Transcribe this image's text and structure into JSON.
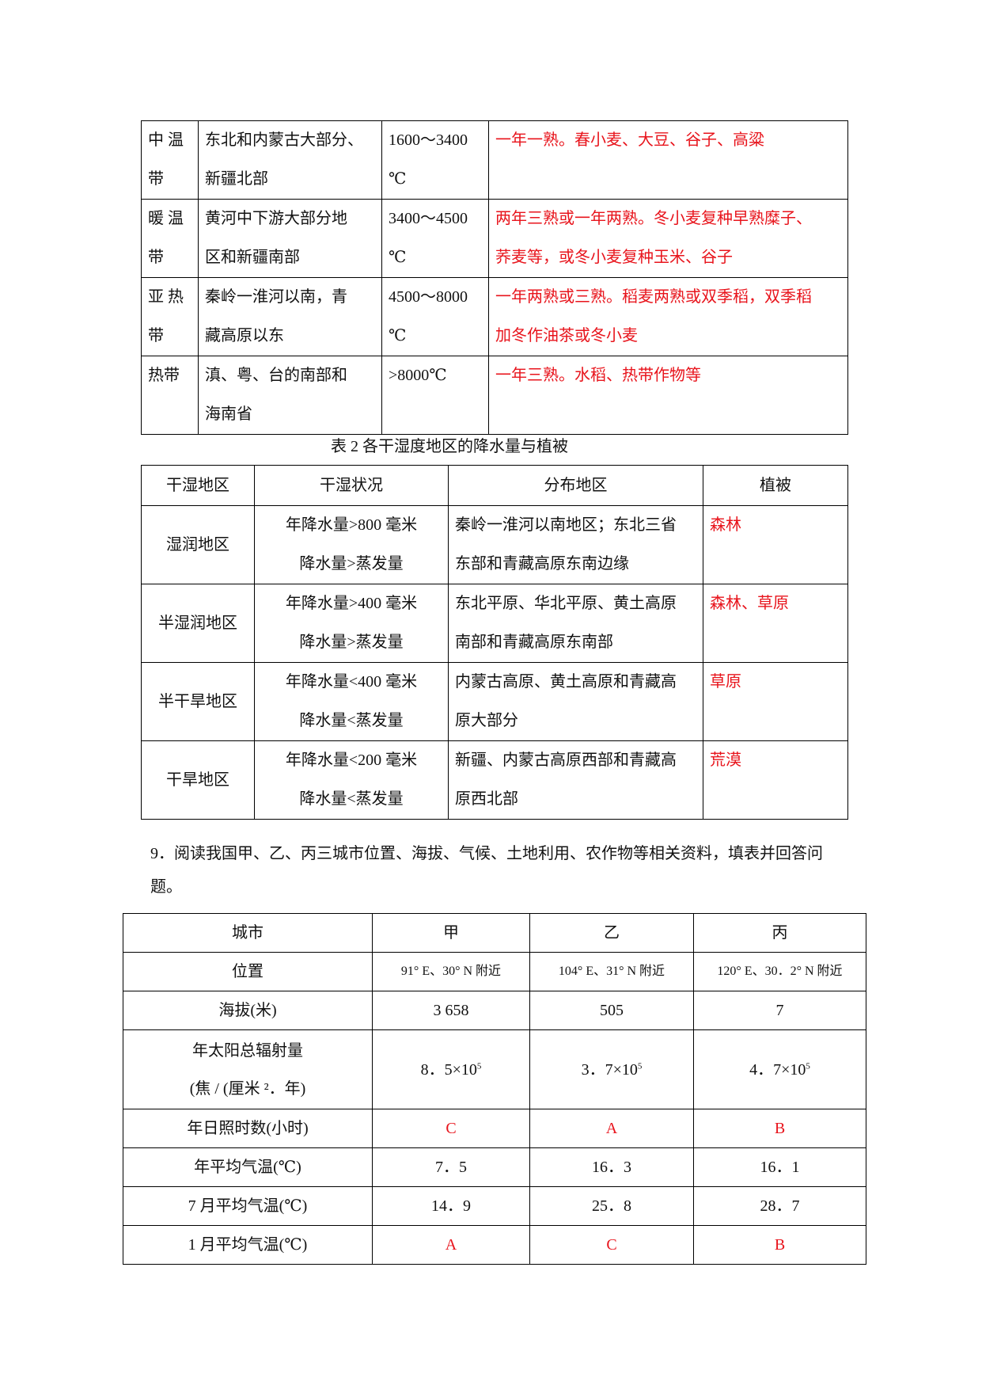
{
  "table1": {
    "rows": [
      {
        "zone": [
          "中 温",
          "带"
        ],
        "region": [
          "东北和内蒙古大部分、",
          "新疆北部"
        ],
        "temp": [
          "1600～3400",
          "℃"
        ],
        "crops": [
          "一年一熟。春小麦、大豆、谷子、高粱"
        ]
      },
      {
        "zone": [
          "暖 温",
          "带"
        ],
        "region": [
          "黄河中下游大部分地",
          "区和新疆南部"
        ],
        "temp": [
          "3400～4500",
          "℃"
        ],
        "crops": [
          "两年三熟或一年两熟。冬小麦复种早熟糜子、",
          "荞麦等，或冬小麦复种玉米、谷子"
        ]
      },
      {
        "zone": [
          "亚 热",
          "带"
        ],
        "region": [
          "秦岭一淮河以南，青",
          "藏高原以东"
        ],
        "temp": [
          "4500～8000",
          "℃"
        ],
        "crops": [
          "一年两熟或三熟。稻麦两熟或双季稻，双季稻",
          "加冬作油茶或冬小麦"
        ]
      },
      {
        "zone": [
          "热带",
          ""
        ],
        "region": [
          "滇、粤、台的南部和",
          "海南省"
        ],
        "temp": [
          ">8000℃",
          ""
        ],
        "crops": [
          "一年三熟。水稻、热带作物等"
        ]
      }
    ]
  },
  "table2": {
    "caption": "表 2 各干湿度地区的降水量与植被",
    "headers": [
      "干湿地区",
      "干湿状况",
      "分布地区",
      "植被"
    ],
    "rows": [
      {
        "area": "湿润地区",
        "status": [
          "年降水量>800  毫米",
          "降水量>蒸发量"
        ],
        "distribution": [
          "秦岭一淮河以南地区；东北三省",
          "东部和青藏高原东南边缘"
        ],
        "vegetation": "森林"
      },
      {
        "area": "半湿润地区",
        "status": [
          "年降水量>400  毫米",
          "降水量>蒸发量"
        ],
        "distribution": [
          "东北平原、华北平原、黄土高原",
          "南部和青藏高原东南部"
        ],
        "vegetation": "森林、草原"
      },
      {
        "area": "半干旱地区",
        "status": [
          "年降水量<400  毫米",
          "降水量<蒸发量"
        ],
        "distribution": [
          "内蒙古高原、黄土高原和青藏高",
          "原大部分"
        ],
        "vegetation": "草原"
      },
      {
        "area": "干旱地区",
        "status": [
          "年降水量<200  毫米",
          "降水量<蒸发量"
        ],
        "distribution": [
          "新疆、内蒙古高原西部和青藏高",
          "原西北部"
        ],
        "vegetation": "荒漠"
      }
    ]
  },
  "question": "9．阅读我国甲、乙、丙三城市位置、海拔、气候、土地利用、农作物等相关资料，填表并回答问题。",
  "table3": {
    "headers": [
      "城市",
      "甲",
      "乙",
      "丙"
    ],
    "location": {
      "label": "位置",
      "values": [
        "91° E、30° N 附近",
        "104° E、31° N 附近",
        "120° E、30．2° N 附近"
      ]
    },
    "altitude": {
      "label": "海拔(米)",
      "values": [
        "3 658",
        "505",
        "7"
      ]
    },
    "radiation": {
      "label": [
        "年太阳总辐射量",
        "(焦 / (厘米 ²．年)"
      ],
      "values": [
        "8．5×10",
        "3．7×10",
        "4．7×10"
      ],
      "exponent": "5"
    },
    "sunshine": {
      "label": "年日照时数(小时)",
      "values": [
        "C",
        "A",
        "B"
      ]
    },
    "annual_temp": {
      "label": "年平均气温(℃)",
      "values": [
        "7．5",
        "16．3",
        "16．1"
      ]
    },
    "july_temp": {
      "label": "7 月平均气温(℃)",
      "values": [
        "14．9",
        "25．8",
        "28．7"
      ]
    },
    "jan_temp": {
      "label": "1 月平均气温(℃)",
      "values": [
        "A",
        "C",
        "B"
      ]
    }
  },
  "colors": {
    "answer": "#e8141c",
    "text": "#111111"
  }
}
